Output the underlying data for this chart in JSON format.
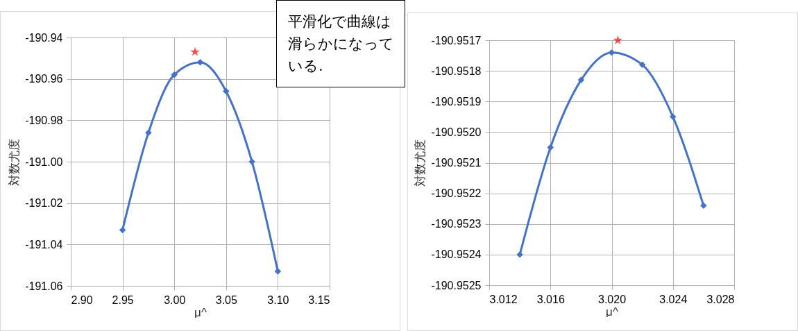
{
  "chart_data": [
    {
      "type": "line",
      "xlabel": "μ^",
      "ylabel": "対数尤度",
      "grid": true,
      "marker": "diamond",
      "line_style": "solid",
      "xlim": [
        2.9,
        3.15
      ],
      "xticks": [
        {
          "value": 2.9,
          "label": "2.90"
        },
        {
          "value": 2.95,
          "label": "2.95"
        },
        {
          "value": 3.0,
          "label": "3.00"
        },
        {
          "value": 3.05,
          "label": "3.05"
        },
        {
          "value": 3.1,
          "label": "3.10"
        },
        {
          "value": 3.15,
          "label": "3.15"
        }
      ],
      "ylim": [
        -191.06,
        -190.94
      ],
      "yticks": [
        {
          "value": -191.06,
          "label": "-191.06"
        },
        {
          "value": -191.04,
          "label": "-191.04"
        },
        {
          "value": -191.02,
          "label": "-191.02"
        },
        {
          "value": -191.0,
          "label": "-191.00"
        },
        {
          "value": -190.98,
          "label": "-190.98"
        },
        {
          "value": -190.96,
          "label": "-190.96"
        },
        {
          "value": -190.94,
          "label": "-190.94"
        }
      ],
      "series": [
        {
          "color": "#4472c4",
          "x": [
            2.95,
            2.975,
            3.0,
            3.025,
            3.05,
            3.075,
            3.1
          ],
          "values": [
            -191.033,
            -190.986,
            -190.958,
            -190.952,
            -190.966,
            -191.0,
            -191.053
          ]
        },
        {
          "type": "scatter",
          "marker": "star",
          "color": "#ff0000",
          "x": [
            3.02
          ],
          "values": [
            -190.947
          ]
        }
      ],
      "annotations": [
        "平滑化で曲線は滑らかになっている."
      ]
    },
    {
      "type": "line",
      "xlabel": "μ^",
      "ylabel": "対数尤度",
      "grid": true,
      "marker": "diamond",
      "line_style": "solid",
      "xlim": [
        3.012,
        3.028
      ],
      "xticks": [
        {
          "value": 3.012,
          "label": "3.012"
        },
        {
          "value": 3.016,
          "label": "3.016"
        },
        {
          "value": 3.02,
          "label": "3.020"
        },
        {
          "value": 3.024,
          "label": "3.024"
        },
        {
          "value": 3.028,
          "label": "3.028"
        }
      ],
      "ylim": [
        -190.9525,
        -190.9517
      ],
      "yticks": [
        {
          "value": -190.9525,
          "label": "-190.9525"
        },
        {
          "value": -190.9524,
          "label": "-190.9524"
        },
        {
          "value": -190.9523,
          "label": "-190.9523"
        },
        {
          "value": -190.9522,
          "label": "-190.9522"
        },
        {
          "value": -190.9521,
          "label": "-190.9521"
        },
        {
          "value": -190.952,
          "label": "-190.9520"
        },
        {
          "value": -190.9519,
          "label": "-190.9519"
        },
        {
          "value": -190.9518,
          "label": "-190.9518"
        },
        {
          "value": -190.9517,
          "label": "-190.9517"
        }
      ],
      "series": [
        {
          "color": "#4472c4",
          "x": [
            3.014,
            3.016,
            3.018,
            3.02,
            3.022,
            3.024,
            3.026
          ],
          "values": [
            -190.9524,
            -190.95205,
            -190.95183,
            -190.95174,
            -190.95178,
            -190.95195,
            -190.95224
          ]
        },
        {
          "type": "scatter",
          "marker": "star",
          "color": "#ff0000",
          "x": [
            3.0204
          ],
          "values": [
            -190.9517
          ]
        }
      ]
    }
  ]
}
